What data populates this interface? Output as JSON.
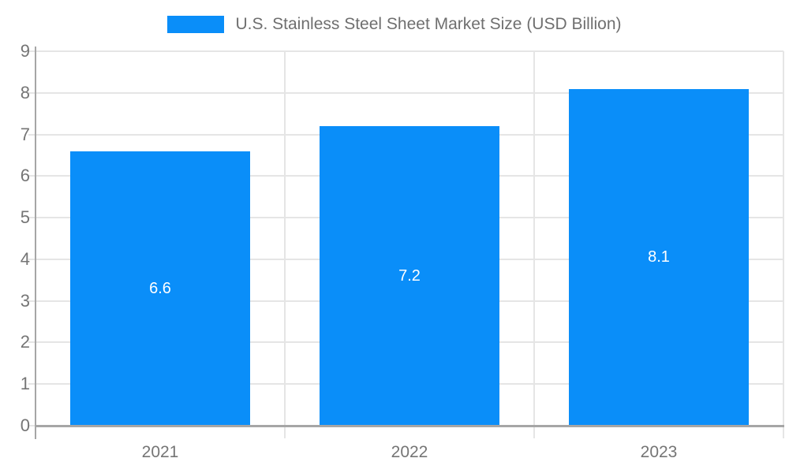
{
  "chart_data": {
    "type": "bar",
    "title": "U.S. Stainless Steel Sheet Market Size (USD Billion)",
    "categories": [
      "2021",
      "2022",
      "2023"
    ],
    "values": [
      6.6,
      7.2,
      8.1
    ],
    "value_labels": [
      "6.6",
      "7.2",
      "8.1"
    ],
    "ylabel": "",
    "xlabel": "",
    "ylim": [
      0,
      9
    ],
    "ytick_step": 1,
    "ytick_labels": [
      "0",
      "1",
      "2",
      "3",
      "4",
      "5",
      "6",
      "7",
      "8",
      "9"
    ],
    "grid": true,
    "legend_position": "top",
    "colors": {
      "bar": "#0A8EF9",
      "grid": "#E5E5E5",
      "axis": "#A6A6A6",
      "tick_text": "#757575",
      "title_text": "#6F6F6F",
      "value_label_text": "#FFFFFF",
      "background": "#FFFFFF"
    }
  }
}
